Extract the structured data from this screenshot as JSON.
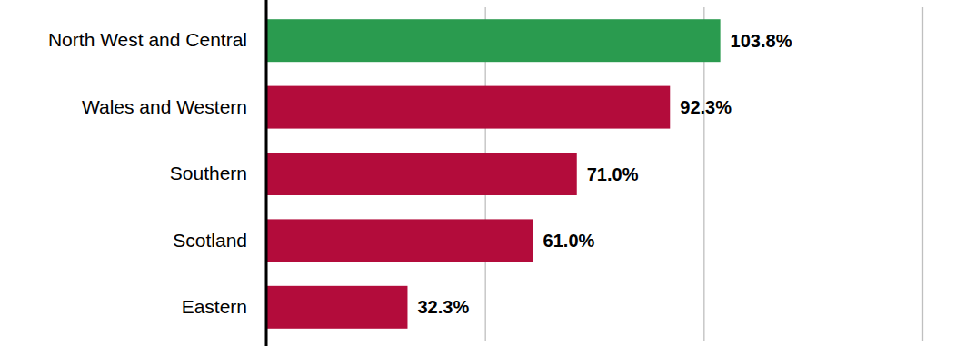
{
  "chart_data": {
    "type": "bar",
    "orientation": "horizontal",
    "categories": [
      "North West and Central",
      "Wales and Western",
      "Southern",
      "Scotland",
      "Eastern"
    ],
    "values": [
      103.8,
      92.3,
      71.0,
      61.0,
      32.3
    ],
    "value_labels": [
      "103.8%",
      "92.3%",
      "71.0%",
      "61.0%",
      "32.3%"
    ],
    "colors": [
      "#2a9b4f",
      "#b30c3b",
      "#b30c3b",
      "#b30c3b",
      "#b30c3b"
    ],
    "xlim": [
      0,
      150
    ],
    "xticks": [
      0,
      50,
      100,
      150
    ],
    "grid": true,
    "data_labels": true,
    "tick_labels": "y"
  }
}
